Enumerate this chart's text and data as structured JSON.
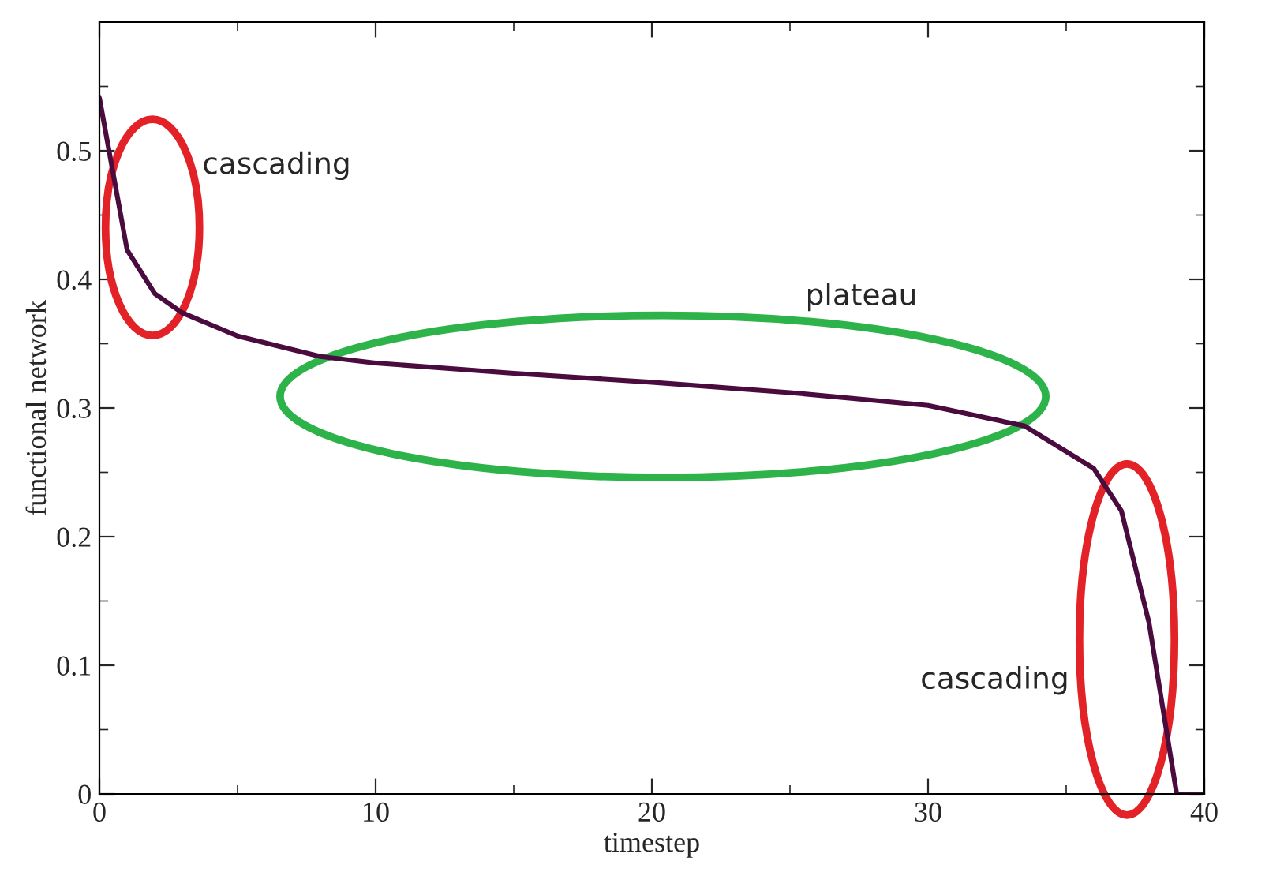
{
  "chart_data": {
    "type": "line",
    "xlabel": "timestep",
    "ylabel": "functional network",
    "x": [
      0,
      1,
      2,
      3,
      5,
      8,
      10,
      15,
      20,
      25,
      30,
      33.5,
      36,
      37,
      38,
      39,
      40
    ],
    "series": [
      {
        "color": "#4a0c3e",
        "values": [
          0.541,
          0.423,
          0.389,
          0.374,
          0.356,
          0.34,
          0.335,
          0.327,
          0.32,
          0.312,
          0.302,
          0.286,
          0.253,
          0.22,
          0.133,
          0,
          0
        ]
      }
    ],
    "xlim": [
      0,
      40
    ],
    "ylim": [
      0,
      0.6
    ],
    "xticks": [
      0,
      10,
      20,
      30,
      40
    ],
    "yticks": [
      0,
      0.1,
      0.2,
      0.3,
      0.4,
      0.5
    ],
    "annotations": [
      "cascading",
      "plateau",
      "cascading"
    ],
    "grid": false,
    "legend": false,
    "marker": "none",
    "line_style": "solid"
  }
}
